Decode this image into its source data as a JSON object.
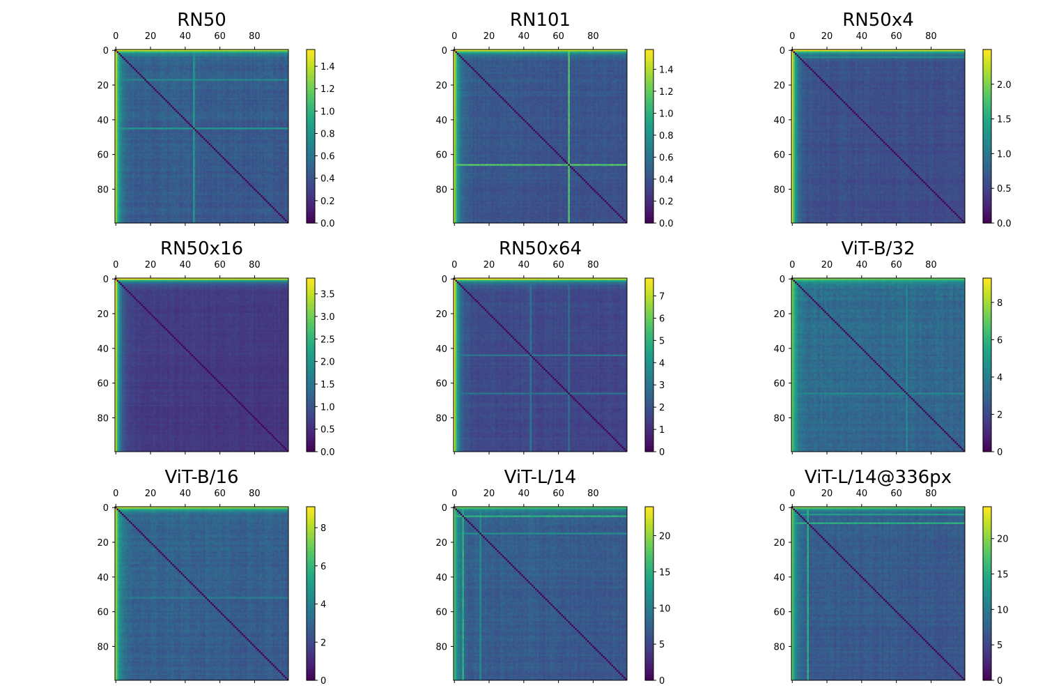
{
  "chart_data": [
    {
      "type": "heatmap",
      "title": "RN50",
      "n": 100,
      "x_ticks": [
        0,
        20,
        40,
        60,
        80
      ],
      "y_ticks": [
        0,
        20,
        40,
        60,
        80
      ],
      "colormap": "viridis",
      "vmin": 0,
      "vmax": 1.55,
      "colorbar_ticks": [
        0.0,
        0.2,
        0.4,
        0.6,
        0.8,
        1.0,
        1.2,
        1.4
      ],
      "colorbar_decimals": 1,
      "base_value": 0.45,
      "edge_value": 1.35,
      "band_rows": [
        [
          45,
          0.85
        ],
        [
          17,
          0.75
        ]
      ],
      "band_cols": [
        [
          45,
          0.85
        ]
      ]
    },
    {
      "type": "heatmap",
      "title": "RN101",
      "n": 100,
      "x_ticks": [
        0,
        20,
        40,
        60,
        80
      ],
      "y_ticks": [
        0,
        20,
        40,
        60,
        80
      ],
      "colormap": "viridis",
      "vmin": 0,
      "vmax": 1.58,
      "colorbar_ticks": [
        0.0,
        0.2,
        0.4,
        0.6,
        0.8,
        1.0,
        1.2,
        1.4
      ],
      "colorbar_decimals": 1,
      "base_value": 0.42,
      "edge_value": 1.4,
      "band_rows": [
        [
          66,
          1.2
        ]
      ],
      "band_cols": [
        [
          66,
          1.2
        ]
      ]
    },
    {
      "type": "heatmap",
      "title": "RN50x4",
      "n": 100,
      "x_ticks": [
        0,
        20,
        40,
        60,
        80
      ],
      "y_ticks": [
        0,
        20,
        40,
        60,
        80
      ],
      "colormap": "viridis",
      "vmin": 0,
      "vmax": 2.5,
      "colorbar_ticks": [
        0.0,
        0.5,
        1.0,
        1.5,
        2.0
      ],
      "colorbar_decimals": 1,
      "base_value": 0.6,
      "edge_value": 2.3,
      "band_rows": [
        [
          4,
          1.2
        ]
      ],
      "band_cols": []
    },
    {
      "type": "heatmap",
      "title": "RN50x16",
      "n": 100,
      "x_ticks": [
        0,
        20,
        40,
        60,
        80
      ],
      "y_ticks": [
        0,
        20,
        40,
        60,
        80
      ],
      "colormap": "viridis",
      "vmin": 0,
      "vmax": 3.85,
      "colorbar_ticks": [
        0.0,
        0.5,
        1.0,
        1.5,
        2.0,
        2.5,
        3.0,
        3.5
      ],
      "colorbar_decimals": 1,
      "base_value": 0.65,
      "edge_value": 3.5,
      "band_rows": [],
      "band_cols": []
    },
    {
      "type": "heatmap",
      "title": "RN50x64",
      "n": 100,
      "x_ticks": [
        0,
        20,
        40,
        60,
        80
      ],
      "y_ticks": [
        0,
        20,
        40,
        60,
        80
      ],
      "colormap": "viridis",
      "vmin": 0,
      "vmax": 7.8,
      "colorbar_ticks": [
        0,
        1,
        2,
        3,
        4,
        5,
        6,
        7
      ],
      "colorbar_decimals": 0,
      "base_value": 1.7,
      "edge_value": 7.2,
      "band_rows": [
        [
          44,
          3.2
        ],
        [
          66,
          3.0
        ]
      ],
      "band_cols": [
        [
          44,
          3.2
        ],
        [
          66,
          3.0
        ]
      ]
    },
    {
      "type": "heatmap",
      "title": "ViT-B/32",
      "n": 100,
      "x_ticks": [
        0,
        20,
        40,
        60,
        80
      ],
      "y_ticks": [
        0,
        20,
        40,
        60,
        80
      ],
      "colormap": "viridis",
      "vmin": 0,
      "vmax": 9.3,
      "colorbar_ticks": [
        0,
        2,
        4,
        6,
        8
      ],
      "colorbar_decimals": 0,
      "base_value": 3.2,
      "edge_value": 7.0,
      "band_rows": [
        [
          66,
          4.5
        ]
      ],
      "band_cols": [
        [
          66,
          4.5
        ]
      ]
    },
    {
      "type": "heatmap",
      "title": "ViT-B/16",
      "n": 100,
      "x_ticks": [
        0,
        20,
        40,
        60,
        80
      ],
      "y_ticks": [
        0,
        20,
        40,
        60,
        80
      ],
      "colormap": "viridis",
      "vmin": 0,
      "vmax": 9.1,
      "colorbar_ticks": [
        0,
        2,
        4,
        6,
        8
      ],
      "colorbar_decimals": 0,
      "base_value": 2.8,
      "edge_value": 7.5,
      "band_rows": [
        [
          52,
          4.0
        ]
      ],
      "band_cols": []
    },
    {
      "type": "heatmap",
      "title": "ViT-L/14",
      "n": 100,
      "x_ticks": [
        0,
        20,
        40,
        60,
        80
      ],
      "y_ticks": [
        0,
        20,
        40,
        60,
        80
      ],
      "colormap": "viridis",
      "vmin": 0,
      "vmax": 24,
      "colorbar_ticks": [
        0,
        5,
        10,
        15,
        20
      ],
      "colorbar_decimals": 0,
      "base_value": 7,
      "edge_value": 17,
      "band_rows": [
        [
          5,
          16
        ],
        [
          15,
          12
        ]
      ],
      "band_cols": [
        [
          5,
          16
        ],
        [
          15,
          12
        ]
      ]
    },
    {
      "type": "heatmap",
      "title": "ViT-L/14@336px",
      "n": 100,
      "x_ticks": [
        0,
        20,
        40,
        60,
        80
      ],
      "y_ticks": [
        0,
        20,
        40,
        60,
        80
      ],
      "colormap": "viridis",
      "vmin": 0,
      "vmax": 24.5,
      "colorbar_ticks": [
        0,
        5,
        10,
        15,
        20
      ],
      "colorbar_decimals": 0,
      "base_value": 7,
      "edge_value": 18,
      "band_rows": [
        [
          9,
          16
        ],
        [
          4,
          14
        ]
      ],
      "band_cols": [
        [
          9,
          16
        ]
      ]
    }
  ]
}
